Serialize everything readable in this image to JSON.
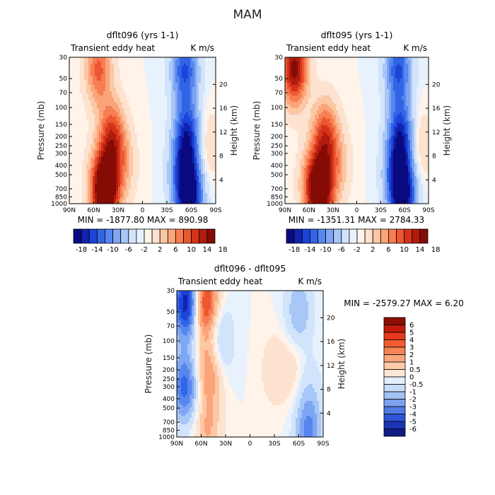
{
  "figure": {
    "title": "MAM"
  },
  "chart_data": [
    {
      "type": "heatmap",
      "title": "dflt096 (yrs 1-1)",
      "subtitle_left": "Transient eddy heat",
      "subtitle_right": "K m/s",
      "ylabel": "Pressure (mb)",
      "ylabel_right": "Height (km)",
      "x_ticks": [
        "90N",
        "60N",
        "30N",
        "0",
        "30S",
        "60S",
        "90S"
      ],
      "y_ticks": [
        "30",
        "50",
        "70",
        "100",
        "150",
        "200",
        "250",
        "300",
        "400",
        "500",
        "700",
        "850",
        "1000"
      ],
      "y_right_ticks": [
        "20",
        "16",
        "12",
        "8",
        "4"
      ],
      "stats": "MIN = -1877.80   MAX = 890.98",
      "colorbar_ticks": [
        "-18",
        "-14",
        "-10",
        "-6",
        "-2",
        "2",
        "6",
        "10",
        "14",
        "18"
      ],
      "features": [
        {
          "lat": 54,
          "p": 40,
          "value": 12
        },
        {
          "lat": 38,
          "p": 200,
          "value": 14
        },
        {
          "lat": 45,
          "p": 800,
          "value": 20
        },
        {
          "lat": 50,
          "p": 600,
          "value": 10
        },
        {
          "lat": 25,
          "p": 400,
          "value": 6
        },
        {
          "lat": -52,
          "p": 40,
          "value": -14
        },
        {
          "lat": -55,
          "p": 200,
          "value": -16
        },
        {
          "lat": -58,
          "p": 850,
          "value": -20
        },
        {
          "lat": -50,
          "p": 500,
          "value": -10
        },
        {
          "lat": -80,
          "p": 250,
          "value": 4
        }
      ]
    },
    {
      "type": "heatmap",
      "title": "dflt095 (yrs 1-1)",
      "subtitle_left": "Transient eddy heat",
      "subtitle_right": "K m/s",
      "ylabel": "Pressure (mb)",
      "ylabel_right": "Height (km)",
      "x_ticks": [
        "90N",
        "60N",
        "30N",
        "0",
        "30S",
        "60S",
        "90S"
      ],
      "y_ticks": [
        "30",
        "50",
        "70",
        "100",
        "150",
        "200",
        "250",
        "300",
        "400",
        "500",
        "700",
        "850",
        "1000"
      ],
      "y_right_ticks": [
        "20",
        "16",
        "12",
        "8",
        "4"
      ],
      "stats": "MIN = -1351.31   MAX = 2784.33",
      "colorbar_ticks": [
        "-18",
        "-14",
        "-10",
        "-6",
        "-2",
        "2",
        "6",
        "10",
        "14",
        "18"
      ],
      "features": [
        {
          "lat": 78,
          "p": 40,
          "value": 20
        },
        {
          "lat": 40,
          "p": 200,
          "value": 14
        },
        {
          "lat": 45,
          "p": 800,
          "value": 20
        },
        {
          "lat": 55,
          "p": 600,
          "value": 10
        },
        {
          "lat": 25,
          "p": 400,
          "value": 6
        },
        {
          "lat": -52,
          "p": 40,
          "value": -14
        },
        {
          "lat": -55,
          "p": 200,
          "value": -16
        },
        {
          "lat": -58,
          "p": 850,
          "value": -20
        },
        {
          "lat": -50,
          "p": 500,
          "value": -10
        },
        {
          "lat": -80,
          "p": 250,
          "value": 4
        }
      ]
    },
    {
      "type": "heatmap",
      "title": "dflt096 - dflt095",
      "subtitle_left": "Transient eddy heat",
      "subtitle_right": "K m/s",
      "ylabel": "Pressure (mb)",
      "ylabel_right": "Height (km)",
      "x_ticks": [
        "90N",
        "60N",
        "30N",
        "0",
        "30S",
        "60S",
        "90S"
      ],
      "y_ticks": [
        "30",
        "50",
        "70",
        "100",
        "150",
        "200",
        "250",
        "300",
        "400",
        "500",
        "700",
        "850",
        "1000"
      ],
      "y_right_ticks": [
        "20",
        "16",
        "12",
        "8",
        "4"
      ],
      "stats": "MIN = -2579.27   MAX =     6.20",
      "colorbar_ticks": [
        "6",
        "5",
        "4",
        "3",
        "2",
        "1",
        "0.5",
        "0",
        "-0.5",
        "-1",
        "-2",
        "-3",
        "-4",
        "-5",
        "-6"
      ],
      "features": [
        {
          "lat": 78,
          "p": 40,
          "value": -6
        },
        {
          "lat": 80,
          "p": 300,
          "value": -4
        },
        {
          "lat": 55,
          "p": 40,
          "value": 5
        },
        {
          "lat": 50,
          "p": 200,
          "value": 3
        },
        {
          "lat": 52,
          "p": 850,
          "value": 2
        },
        {
          "lat": 38,
          "p": 100,
          "value": -2
        },
        {
          "lat": -60,
          "p": 50,
          "value": -2
        },
        {
          "lat": -30,
          "p": 200,
          "value": 1
        },
        {
          "lat": -55,
          "p": 200,
          "value": 1
        },
        {
          "lat": -70,
          "p": 300,
          "value": -1
        },
        {
          "lat": -72,
          "p": 900,
          "value": -3
        }
      ]
    }
  ]
}
